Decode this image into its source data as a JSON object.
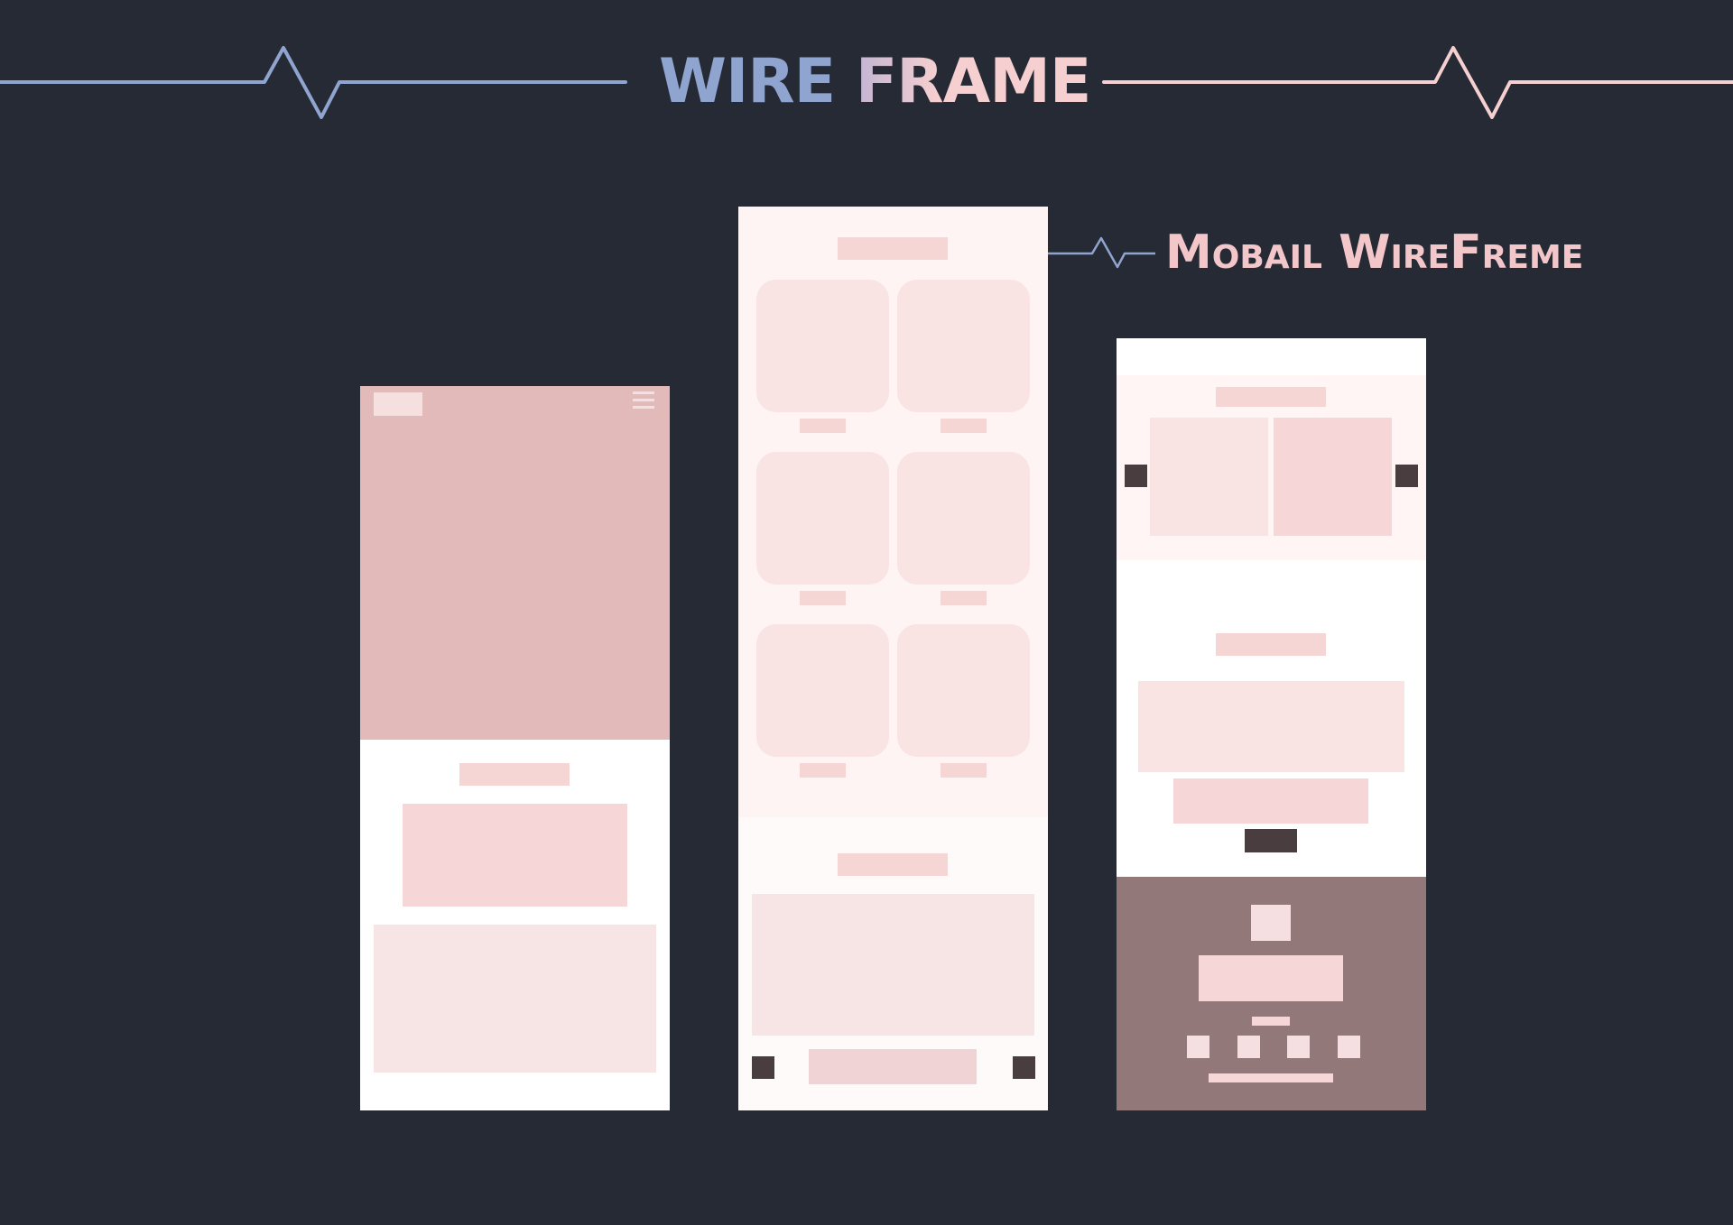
{
  "header": {
    "title_part1": "WIRE",
    "title_part2": "FRAME",
    "subtitle": "Mobail WireFreme"
  },
  "colors": {
    "background": "#252a35",
    "accent_blue": "#8fa4cf",
    "accent_pink": "#f6cfd0",
    "hero": "#e2baba",
    "footer": "#927878",
    "dark_button": "#4a3d3f"
  },
  "icons": {
    "menu": "hamburger-icon",
    "prev": "arrow-left-icon",
    "next": "arrow-right-icon",
    "social": "social-icon"
  }
}
